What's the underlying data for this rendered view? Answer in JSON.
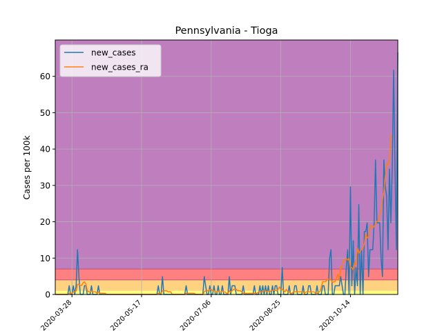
{
  "chart_data": {
    "type": "line",
    "title": "Pennsylvania - Tioga",
    "xlabel": "",
    "ylabel": "Cases per 100k",
    "x_start": "2020-03-16",
    "x_end": "2020-11-13",
    "xlim": [
      "2020-03-16",
      "2020-11-17"
    ],
    "ylim": [
      0,
      70
    ],
    "xticks": [
      "2020-03-28",
      "2020-05-17",
      "2020-07-06",
      "2020-08-25",
      "2020-10-14"
    ],
    "yticks": [
      0,
      10,
      20,
      30,
      40,
      50,
      60
    ],
    "grid": true,
    "legend_position": "top-left",
    "background_bands": [
      {
        "from": 0,
        "to": 1,
        "color": "#ffff80"
      },
      {
        "from": 1,
        "to": 4,
        "color": "#ffd280"
      },
      {
        "from": 4,
        "to": 7,
        "color": "#ff8080"
      },
      {
        "from": 7,
        "to": 70,
        "color": "#bf7fbf"
      }
    ],
    "series": [
      {
        "name": "new_cases",
        "color": "#1f77b4",
        "values": [
          0,
          0,
          0,
          0,
          0,
          0,
          0,
          0,
          0,
          0,
          2.4,
          0,
          0,
          2.4,
          0,
          2.4,
          12.3,
          4.8,
          0,
          0,
          0,
          2.4,
          2.4,
          0,
          0,
          0,
          2.4,
          0,
          0,
          0,
          0,
          2.4,
          0,
          0,
          0,
          0,
          0,
          0,
          0,
          0,
          0,
          0,
          0,
          0,
          0,
          0,
          0,
          0,
          0,
          0,
          0,
          0,
          0,
          0,
          0,
          0,
          0,
          0,
          0,
          0,
          0,
          0,
          0,
          0,
          0,
          0,
          0,
          0,
          0,
          0,
          0,
          0,
          0,
          0,
          2.4,
          0,
          0,
          4.9,
          0,
          0,
          0,
          0,
          0,
          0,
          0,
          0,
          0,
          0,
          0,
          0,
          0,
          0,
          0,
          0,
          2.4,
          0,
          0,
          0,
          0,
          0,
          0,
          0,
          0,
          0,
          0,
          0,
          0,
          4.9,
          2.4,
          0,
          0,
          2.4,
          0,
          0,
          2.4,
          0,
          0,
          2.4,
          0,
          0,
          2.4,
          0,
          0,
          0,
          0,
          4.9,
          0,
          2.4,
          2.4,
          2.4,
          0,
          0,
          0,
          0,
          0,
          2.4,
          0,
          0,
          0,
          0,
          0,
          0,
          0,
          2.4,
          0,
          0,
          0,
          2.4,
          0,
          2.4,
          0,
          2.4,
          0,
          2.4,
          0,
          0,
          2.4,
          0,
          2.4,
          2.4,
          0,
          0,
          0,
          7.4,
          0,
          0,
          0,
          0,
          2.4,
          0,
          0,
          0,
          2.4,
          2.4,
          0,
          0,
          0,
          0,
          2.4,
          0,
          0,
          0,
          2.4,
          2.4,
          0,
          0,
          0,
          0,
          2.4,
          0,
          0,
          0,
          2.4,
          2.4,
          0,
          0,
          0,
          9.9,
          12.3,
          0,
          0,
          2.4,
          2.4,
          2.4,
          2.4,
          4.9,
          2.4,
          0,
          0,
          7.4,
          12.3,
          0,
          29.6,
          2.4,
          14.8,
          0,
          7.4,
          2.4,
          24.7,
          0,
          12.3,
          0,
          17.3,
          17.3,
          19.7,
          4.9,
          12.3,
          12.3,
          12.3,
          19.7,
          37,
          19.7,
          19.7,
          19.7,
          9.9,
          4.9,
          37,
          29.6,
          27.1,
          12.3,
          34.5,
          19.7,
          34.5,
          61.7,
          34.5,
          12.3,
          66.6
        ],
        "line_width": 1.5
      },
      {
        "name": "new_cases_ra",
        "color": "#ff7f0e",
        "values": [
          0,
          0,
          0,
          0,
          0,
          0,
          0,
          0,
          0,
          0,
          0.3,
          0.3,
          0.3,
          0.7,
          0.7,
          1.0,
          2.8,
          2.8,
          2.5,
          2.5,
          3.2,
          3.5,
          2.8,
          1.1,
          0.7,
          0.7,
          1.0,
          0.7,
          0.7,
          0.7,
          0.3,
          0.7,
          0.3,
          0.3,
          0.3,
          0.3,
          0.3,
          0,
          0,
          0,
          0,
          0,
          0,
          0,
          0,
          0,
          0,
          0,
          0,
          0,
          0,
          0,
          0,
          0,
          0,
          0,
          0,
          0,
          0,
          0,
          0,
          0,
          0,
          0,
          0,
          0,
          0,
          0,
          0,
          0,
          0,
          0,
          0,
          0,
          0.3,
          0.3,
          0.3,
          1.0,
          1.0,
          1.0,
          1.0,
          0.7,
          0.7,
          0.7,
          0,
          0,
          0,
          0,
          0,
          0,
          0,
          0,
          0,
          0,
          0.3,
          0.3,
          0.3,
          0.3,
          0.3,
          0.3,
          0.3,
          0,
          0,
          0,
          0,
          0,
          0,
          0.7,
          1.0,
          1.0,
          1.0,
          1.4,
          1.4,
          1.0,
          1.1,
          0.7,
          0.7,
          1.0,
          0.7,
          0.7,
          1.0,
          0.7,
          0.7,
          0.3,
          0.3,
          1.0,
          0.7,
          1.0,
          1.4,
          1.4,
          1.4,
          1.0,
          1.0,
          1.0,
          0.7,
          0.3,
          0.3,
          0.3,
          0.3,
          0.3,
          0.3,
          0.3,
          0.3,
          0.3,
          0.3,
          0.3,
          0.7,
          0.7,
          0.7,
          0.7,
          1.0,
          1.0,
          0.7,
          1.0,
          0.7,
          1.0,
          1.1,
          1.1,
          1.1,
          1.0,
          1.4,
          2.1,
          1.4,
          1.4,
          1.1,
          0.7,
          1.4,
          0.7,
          0.7,
          0.3,
          0.3,
          0.7,
          0.7,
          0.7,
          0.7,
          0.7,
          0.7,
          0.7,
          0.7,
          0.3,
          0.7,
          0.7,
          0.7,
          0.7,
          0.7,
          0.7,
          0.7,
          0.3,
          0.3,
          0.7,
          0.7,
          1.8,
          3.5,
          3.5,
          3.5,
          3.9,
          4.2,
          4.2,
          4.2,
          3.2,
          3.5,
          3.5,
          4.6,
          5.6,
          3.9,
          7.7,
          7.4,
          9.5,
          9.2,
          9.9,
          9.5,
          9.9,
          7.4,
          7.4,
          6.7,
          8.8,
          8.1,
          12.7,
          11.3,
          12.0,
          12.3,
          12.7,
          14.1,
          16.6,
          15.5,
          15.9,
          18.3,
          19.0,
          18.3,
          18.7,
          19.4,
          20.1,
          20.1,
          21.9,
          23.3,
          26.1,
          28.2,
          32.4,
          36.0,
          35.6,
          37.5,
          44.1
        ],
        "line_width": 1.5
      }
    ]
  }
}
